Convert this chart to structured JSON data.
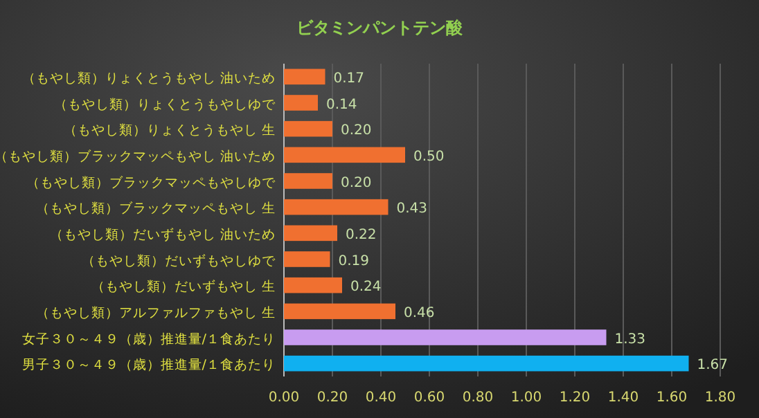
{
  "chart_data": {
    "type": "bar",
    "orientation": "horizontal",
    "title": "ビタミンパントテン酸",
    "categories": [
      "（もやし類）りょくとうもやし 油いため",
      "（もやし類）りょくとうもやしゆで",
      "（もやし類）りょくとうもやし 生",
      "（もやし類）ブラックマッペもやし 油いため",
      "（もやし類）ブラックマッペもやしゆで",
      "（もやし類）ブラックマッペもやし 生",
      "（もやし類）だいずもやし 油いため",
      "（もやし類）だいずもやしゆで",
      "（もやし類）だいずもやし 生",
      "（もやし類）アルファルファもやし 生",
      "女子３０～４９（歳）推進量/１食あたり",
      "男子３０～４９（歳）推進量/１食あたり"
    ],
    "values": [
      0.17,
      0.14,
      0.2,
      0.5,
      0.2,
      0.43,
      0.22,
      0.19,
      0.24,
      0.46,
      1.33,
      1.67
    ],
    "value_labels": [
      "0.17",
      "0.14",
      "0.20",
      "0.50",
      "0.20",
      "0.43",
      "0.22",
      "0.19",
      "0.24",
      "0.46",
      "1.33",
      "1.67"
    ],
    "colors": [
      "#f07030",
      "#f07030",
      "#f07030",
      "#f07030",
      "#f07030",
      "#f07030",
      "#f07030",
      "#f07030",
      "#f07030",
      "#f07030",
      "#c89cf0",
      "#10b0f0"
    ],
    "xlim": [
      0,
      1.8
    ],
    "xticks": [
      {
        "value": 0,
        "label": "0.00"
      },
      {
        "value": 0.2,
        "label": "0.20"
      },
      {
        "value": 0.4,
        "label": "0.40"
      },
      {
        "value": 0.6,
        "label": "0.60"
      },
      {
        "value": 0.8,
        "label": "0.80"
      },
      {
        "value": 1.0,
        "label": "1.00"
      },
      {
        "value": 1.2,
        "label": "1.20"
      },
      {
        "value": 1.4,
        "label": "1.40"
      },
      {
        "value": 1.6,
        "label": "1.60"
      },
      {
        "value": 1.8,
        "label": "1.80"
      }
    ],
    "grid": "x"
  }
}
